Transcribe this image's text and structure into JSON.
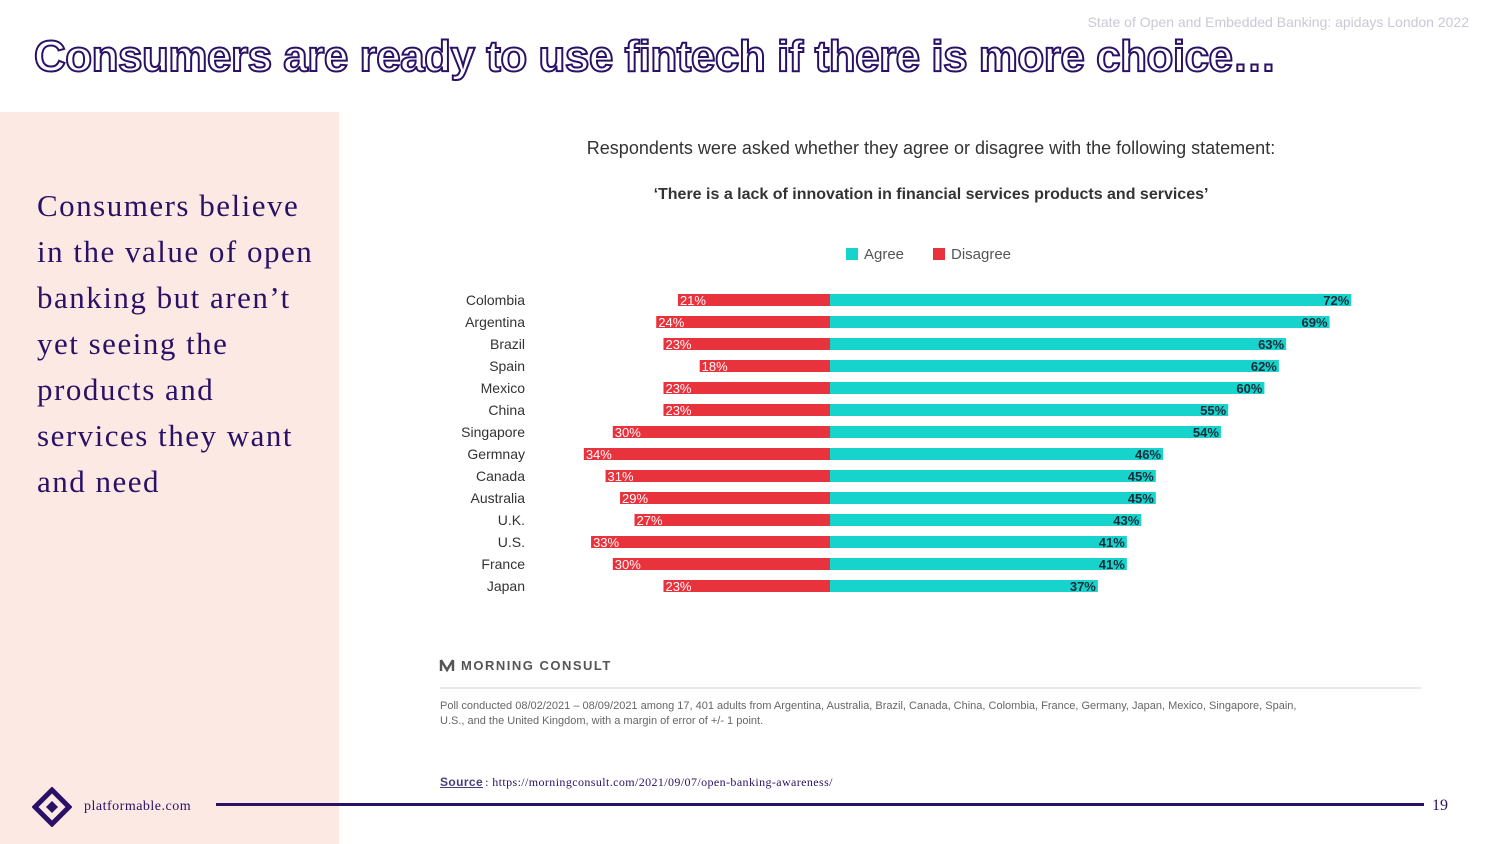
{
  "header": {
    "event_note": "State of Open and Embedded Banking: apidays London 2022",
    "title": "Consumers are ready to use fintech if there is more choice…"
  },
  "sidebar": {
    "text": "Consumers believe in the value of open banking but aren’t yet seeing the products and services they want and need"
  },
  "chart_data": {
    "type": "bar",
    "orientation": "horizontal-diverging",
    "title": "Respondents were asked whether they agree or disagree with the following statement:",
    "subtitle": "‘There is a lack of innovation in financial services products and services’",
    "categories": [
      "Colombia",
      "Argentina",
      "Brazil",
      "Spain",
      "Mexico",
      "China",
      "Singapore",
      "Germnay",
      "Canada",
      "Australia",
      "U.K.",
      "U.S.",
      "France",
      "Japan"
    ],
    "series": [
      {
        "name": "Agree",
        "color": "#16d4cc",
        "values": [
          72,
          69,
          63,
          62,
          60,
          55,
          54,
          46,
          45,
          45,
          43,
          41,
          41,
          37
        ]
      },
      {
        "name": "Disagree",
        "color": "#e8323c",
        "values": [
          21,
          24,
          23,
          18,
          23,
          23,
          30,
          34,
          31,
          29,
          27,
          33,
          30,
          23
        ]
      }
    ],
    "value_suffix": "%",
    "legend_position": "top",
    "grid": false,
    "source_brand": "MORNING CONSULT",
    "footnote_line1": "Poll conducted 08/02/2021 – 08/09/2021 among 17, 401 adults from Argentina, Australia, Brazil, Canada, China, Colombia, France, Germany, Japan, Mexico, Singapore, Spain,",
    "footnote_line2": "U.S., and the United Kingdom, with a margin of error of +/- 1 point."
  },
  "source": {
    "label": "Source",
    "url": ": https://morningconsult.com/2021/09/07/open-banking-awareness/"
  },
  "footer": {
    "brand": "platformable.com",
    "page_number": "19",
    "brand_color": "#2a1166"
  }
}
